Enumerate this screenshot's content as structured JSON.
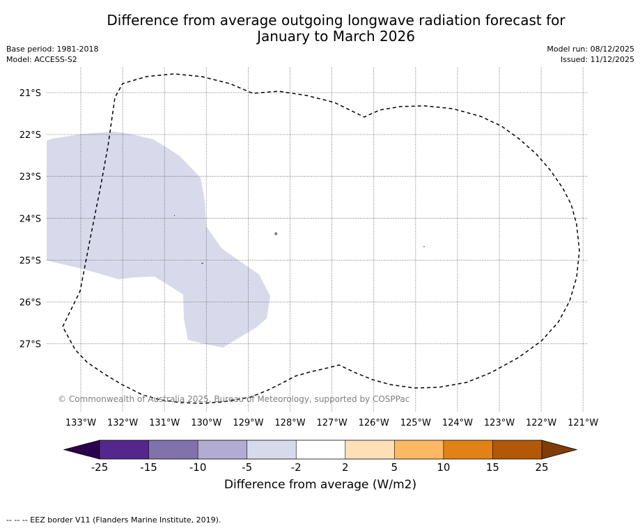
{
  "title_line1": "Difference from average outgoing longwave radiation forecast for",
  "title_line2": "January to March 2026",
  "base_period": "Base period: 1981-2018",
  "model": "Model: ACCESS-S2",
  "model_run": "Model run: 08/12/2025",
  "issued": "Issued: 11/12/2025",
  "lat_labels": [
    "21°S",
    "22°S",
    "23°S",
    "24°S",
    "25°S",
    "26°S",
    "27°S"
  ],
  "lon_labels": [
    "133°W",
    "132°W",
    "131°W",
    "130°W",
    "129°W",
    "128°W",
    "127°W",
    "126°W",
    "125°W",
    "124°W",
    "123°W",
    "122°W",
    "121°W"
  ],
  "copyright": "© Commonwealth of Australia 2025, Bureau of Meteorology, supported by COSPPac",
  "colorbar": {
    "ticks": [
      "-25",
      "-15",
      "-10",
      "-5",
      "-2",
      "2",
      "5",
      "10",
      "15",
      "25"
    ],
    "colors": [
      "#54278f",
      "#8073ac",
      "#b2abd2",
      "#d8daeb",
      "#ffffff",
      "#fee0b6",
      "#fdb863",
      "#e08214",
      "#b35806"
    ],
    "under_color": "#2d004b",
    "over_color": "#7f3b08",
    "label": "Difference from average (W/m2)"
  },
  "anomaly_fill_color": "#d8daeb",
  "footnote": "--  --  -- EEZ border V11 (Flanders Marine Institute, 2019)."
}
